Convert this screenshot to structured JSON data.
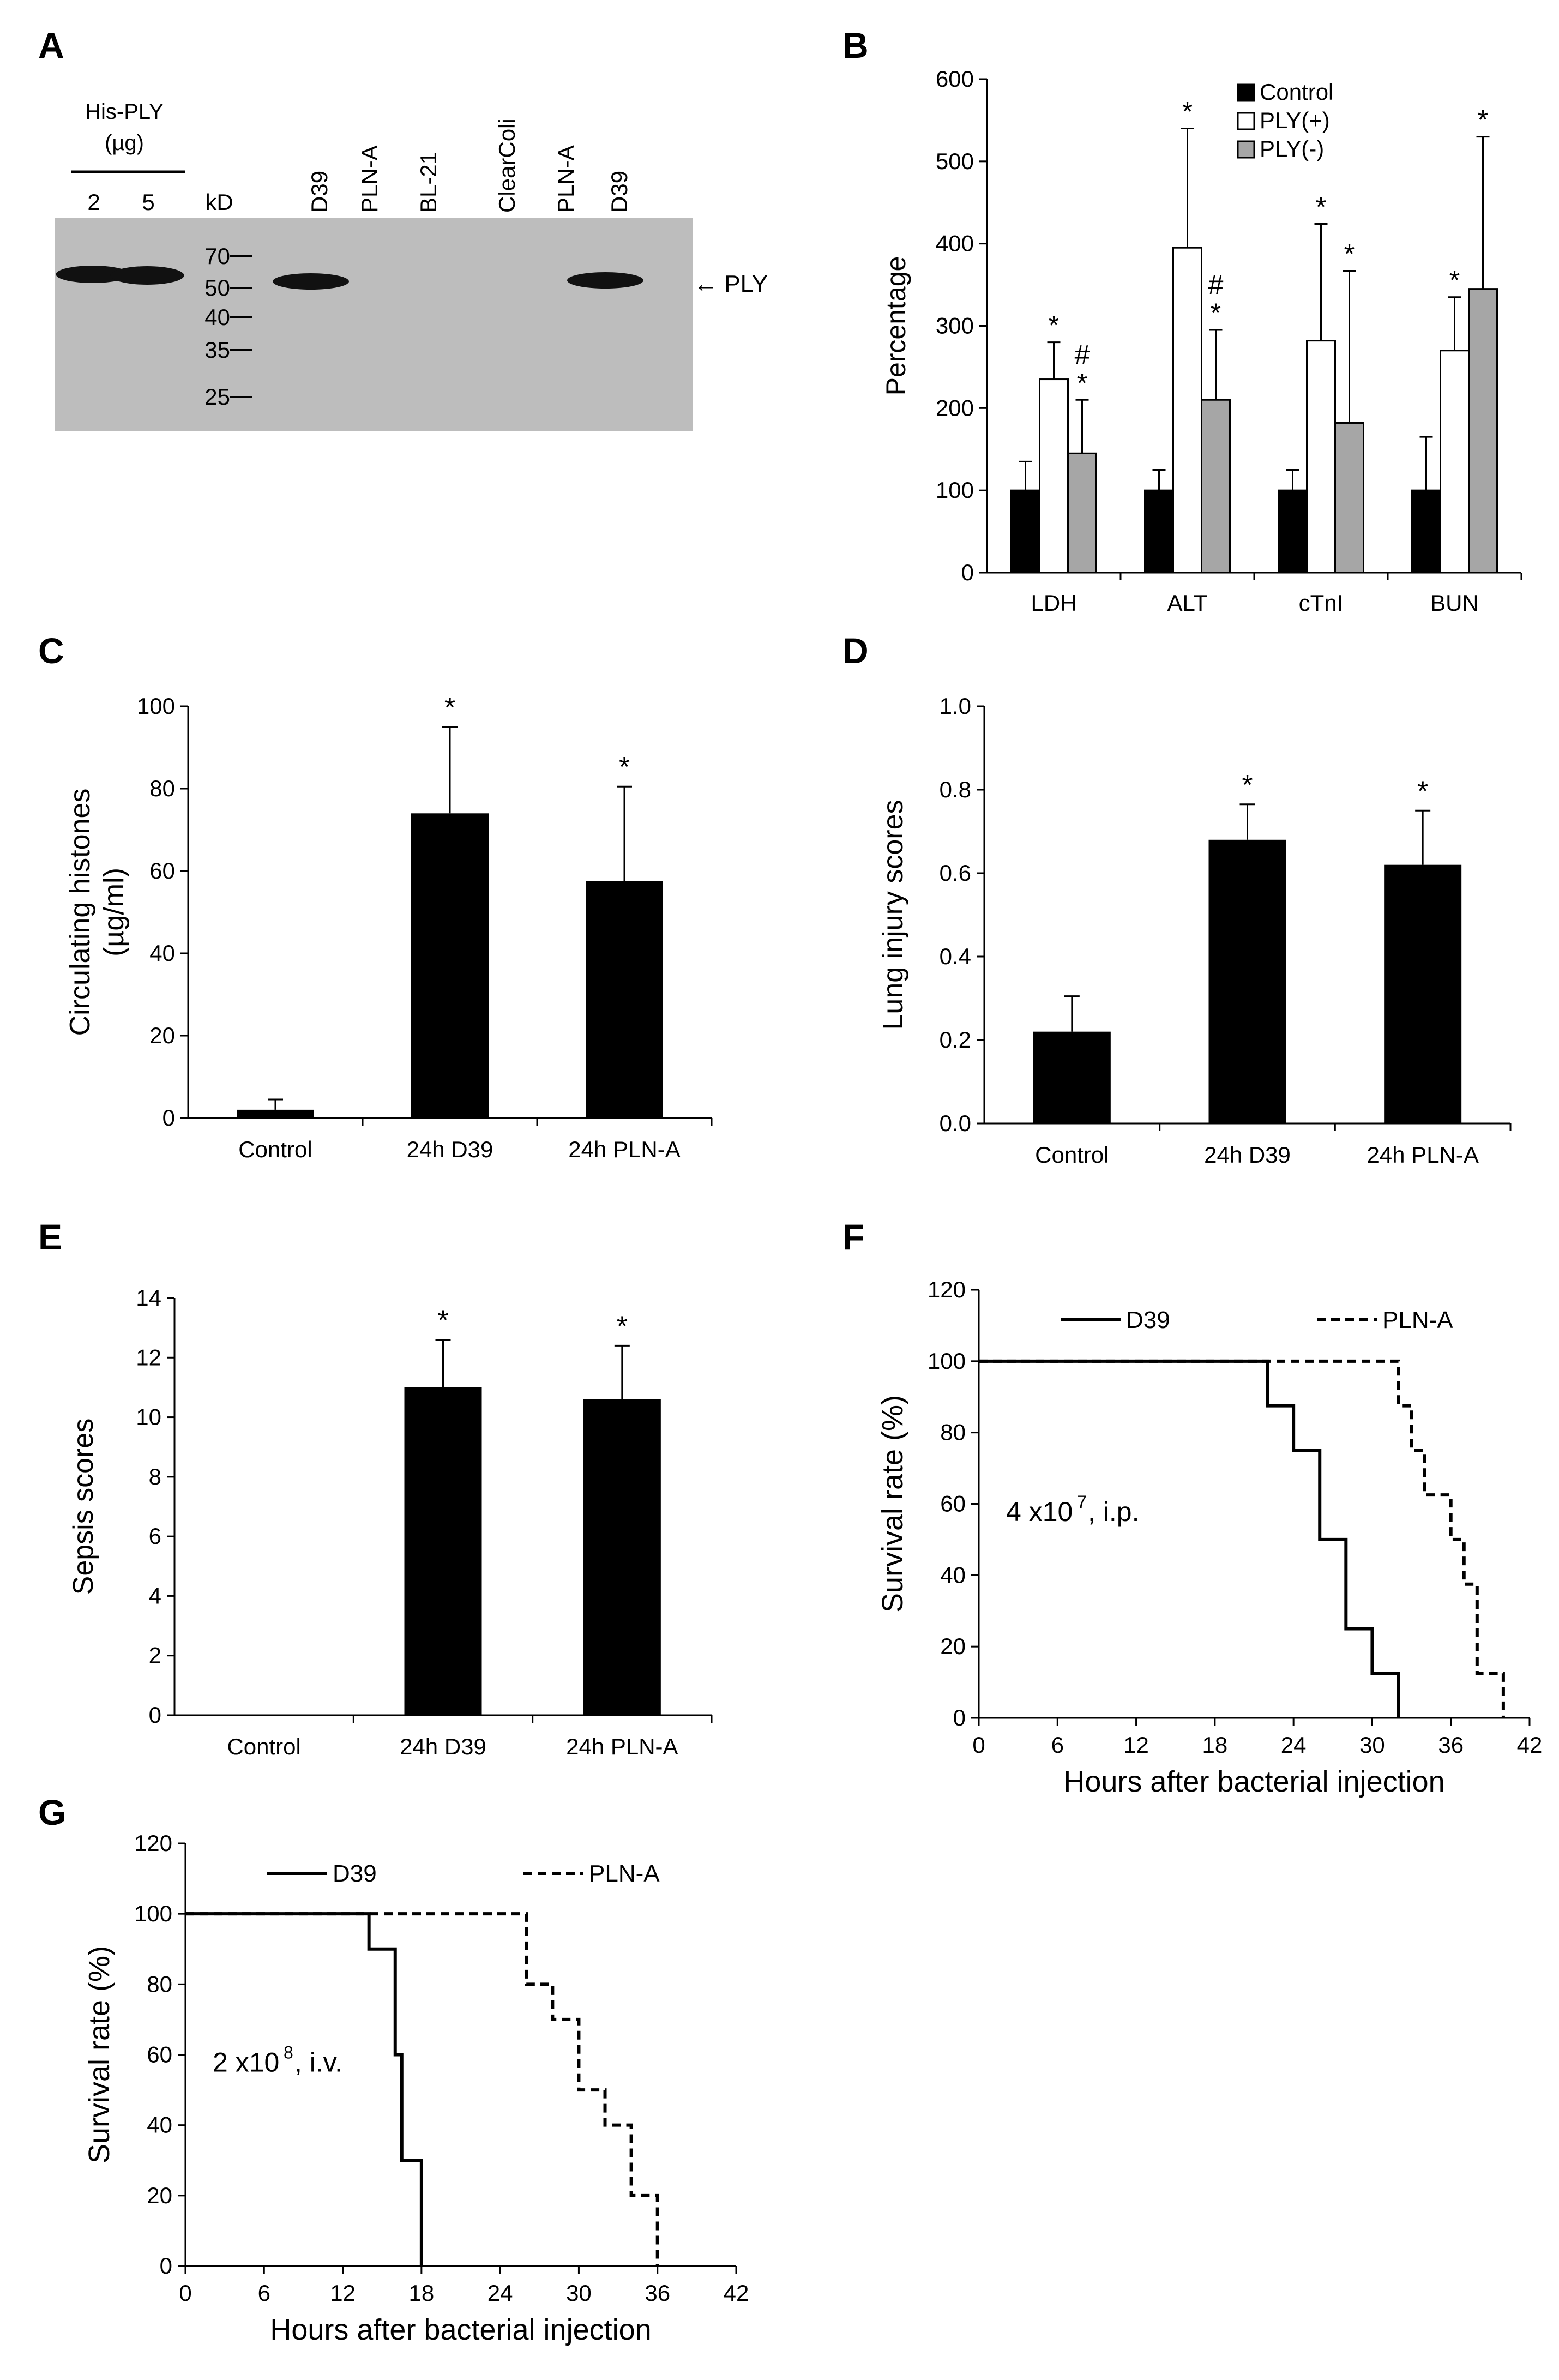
{
  "panel_labels": {
    "A": "A",
    "B": "B",
    "C": "C",
    "D": "D",
    "E": "E",
    "F": "F",
    "G": "G"
  },
  "blot": {
    "his_ply_label": "His-PLY",
    "unit_label": "(µg)",
    "his_amounts": [
      "2",
      "5"
    ],
    "kd_label": "kD",
    "lanes": [
      "D39",
      "PLN-A",
      "BL-21",
      "ClearColi",
      "PLN-A",
      "D39"
    ],
    "markers": [
      "70",
      "50",
      "40",
      "35",
      "25"
    ],
    "arrow_label": "← PLY",
    "colors": {
      "membrane": "#bdbdbd",
      "band": "#111111"
    }
  },
  "chart_data": [
    {
      "id": "B",
      "type": "bar",
      "ylabel": "Percentage",
      "xlabel": "",
      "ylim": [
        0,
        600
      ],
      "yticks": [
        0,
        100,
        200,
        300,
        400,
        500,
        600
      ],
      "categories": [
        "LDH",
        "ALT",
        "cTnI",
        "BUN"
      ],
      "series": [
        {
          "name": "Control",
          "color": "#000000",
          "values": [
            100,
            100,
            100,
            100
          ],
          "errors": [
            35,
            25,
            25,
            65
          ]
        },
        {
          "name": "PLY(+)",
          "color": "#ffffff",
          "values": [
            235,
            395,
            282,
            270
          ],
          "errors": [
            45,
            145,
            142,
            65
          ]
        },
        {
          "name": "PLY(-)",
          "color": "#a6a6a6",
          "values": [
            145,
            210,
            182,
            345
          ],
          "errors": [
            65,
            85,
            185,
            185
          ]
        }
      ],
      "annotations": [
        {
          "category": 0,
          "series": 1,
          "text": "*"
        },
        {
          "category": 0,
          "series": 2,
          "text": "*"
        },
        {
          "category": 0,
          "series": 2,
          "text": "#"
        },
        {
          "category": 1,
          "series": 1,
          "text": "*"
        },
        {
          "category": 1,
          "series": 2,
          "text": "*"
        },
        {
          "category": 1,
          "series": 2,
          "text": "#"
        },
        {
          "category": 2,
          "series": 1,
          "text": "*"
        },
        {
          "category": 2,
          "series": 2,
          "text": "*"
        },
        {
          "category": 3,
          "series": 1,
          "text": "*"
        },
        {
          "category": 3,
          "series": 2,
          "text": "*"
        }
      ],
      "legend_position": "top-right"
    },
    {
      "id": "C",
      "type": "bar",
      "ylabel_lines": [
        "Circulating histones",
        "(µg/ml)"
      ],
      "ylim": [
        0,
        100
      ],
      "yticks": [
        0,
        20,
        40,
        60,
        80,
        100
      ],
      "categories": [
        "Control",
        "24h D39",
        "24h PLN-A"
      ],
      "values": [
        2,
        74,
        57.5
      ],
      "errors": [
        2.5,
        21,
        23
      ],
      "marks": [
        "",
        "*",
        "*"
      ]
    },
    {
      "id": "D",
      "type": "bar",
      "ylabel": "Lung injury scores",
      "ylim": [
        0,
        1.0
      ],
      "yticks": [
        0,
        0.2,
        0.4,
        0.6,
        0.8,
        1.0
      ],
      "ytick_labels": [
        "0.0",
        "0.2",
        "0.4",
        "0.6",
        "0.8",
        "1.0"
      ],
      "categories": [
        "Control",
        "24h D39",
        "24h PLN-A"
      ],
      "values": [
        0.22,
        0.68,
        0.62
      ],
      "errors": [
        0.085,
        0.085,
        0.13
      ],
      "marks": [
        "",
        "*",
        "*"
      ]
    },
    {
      "id": "E",
      "type": "bar",
      "ylabel": "Sepsis scores",
      "ylim": [
        0,
        14
      ],
      "yticks": [
        0,
        2,
        4,
        6,
        8,
        10,
        12,
        14
      ],
      "categories": [
        "Control",
        "24h D39",
        "24h PLN-A"
      ],
      "values": [
        0,
        11,
        10.6
      ],
      "errors": [
        0,
        1.6,
        1.8
      ],
      "marks": [
        "",
        "*",
        "*"
      ]
    },
    {
      "id": "F",
      "type": "line",
      "step": true,
      "xlabel": "Hours after bacterial injection",
      "ylabel": "Survival rate (%)",
      "xlim": [
        0,
        42
      ],
      "ylim": [
        0,
        120
      ],
      "xticks": [
        0,
        6,
        12,
        18,
        24,
        30,
        36,
        42
      ],
      "yticks": [
        0,
        20,
        40,
        60,
        80,
        100,
        120
      ],
      "inset_text": "4 x10",
      "inset_sup": "7",
      "inset_suffix": ", i.p.",
      "series": [
        {
          "name": "D39",
          "dash": "solid",
          "x": [
            0,
            22,
            24,
            26,
            28,
            30,
            32
          ],
          "y": [
            100,
            87.5,
            75,
            50,
            25,
            12.5,
            0
          ]
        },
        {
          "name": "PLN-A",
          "dash": "dashed",
          "x": [
            0,
            32,
            33,
            34,
            36,
            37,
            38,
            39,
            40
          ],
          "y": [
            100,
            87.5,
            75,
            62.5,
            50,
            37.5,
            12.5,
            12.5,
            0
          ]
        }
      ],
      "legend_position": "top"
    },
    {
      "id": "G",
      "type": "line",
      "step": true,
      "xlabel": "Hours after bacterial injection",
      "ylabel": "Survival rate (%)",
      "xlim": [
        0,
        42
      ],
      "ylim": [
        0,
        120
      ],
      "xticks": [
        0,
        6,
        12,
        18,
        24,
        30,
        36,
        42
      ],
      "yticks": [
        0,
        20,
        40,
        60,
        80,
        100,
        120
      ],
      "inset_text": "2 x10",
      "inset_sup": "8",
      "inset_suffix": ", i.v.",
      "series": [
        {
          "name": "D39",
          "dash": "solid",
          "x": [
            0,
            14,
            16,
            16.5,
            18
          ],
          "y": [
            100,
            90,
            60,
            30,
            0
          ]
        },
        {
          "name": "PLN-A",
          "dash": "dashed",
          "x": [
            0,
            26,
            28,
            30,
            32,
            34,
            36
          ],
          "y": [
            100,
            80,
            70,
            50,
            40,
            20,
            0
          ]
        }
      ],
      "legend_position": "top"
    }
  ]
}
